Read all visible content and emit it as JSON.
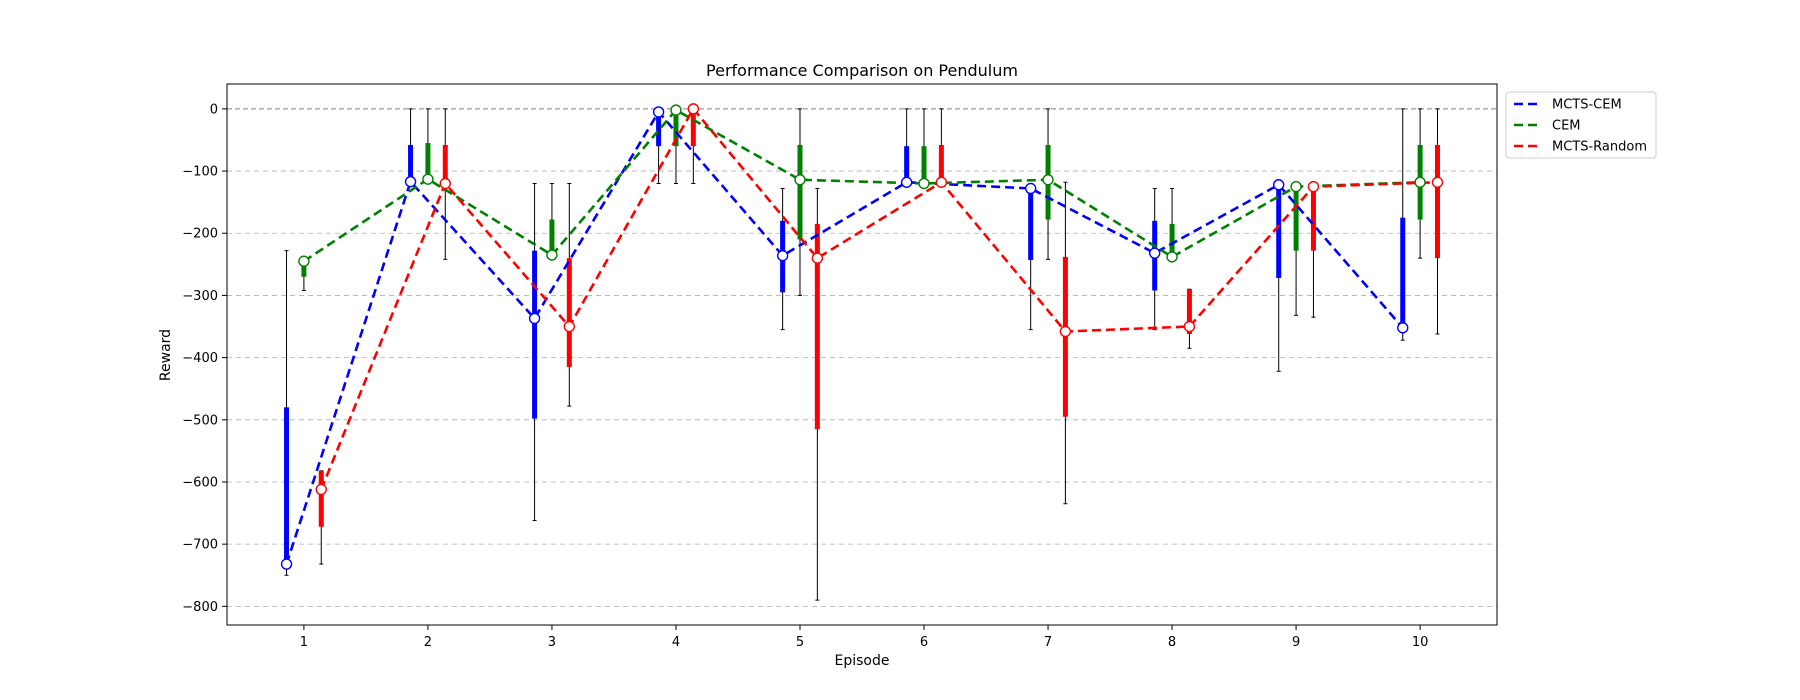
{
  "chart_data": {
    "type": "line",
    "title": "Performance Comparison on Pendulum",
    "xlabel": "Episode",
    "ylabel": "Reward",
    "x": [
      1,
      2,
      3,
      4,
      5,
      6,
      7,
      8,
      9,
      10
    ],
    "xlim": [
      0.38,
      10.62
    ],
    "ylim": [
      -830,
      40
    ],
    "yticks": [
      0,
      -100,
      -200,
      -300,
      -400,
      -500,
      -600,
      -700,
      -800
    ],
    "ytick_labels": [
      "0",
      "−100",
      "−200",
      "−300",
      "−400",
      "−500",
      "−600",
      "−700",
      "−800"
    ],
    "grid": "y-dashed",
    "reference_line": 0,
    "legend_position": "outside-top-right",
    "series": [
      {
        "name": "MCTS-CEM",
        "color": "#0000ff",
        "x_offset": -0.14,
        "values": [
          -732,
          -117,
          -337,
          -5,
          -236,
          -118,
          -128,
          -232,
          -122,
          -352
        ],
        "box_top": [
          -480,
          -58,
          -228,
          0,
          -180,
          -60,
          -135,
          -180,
          -120,
          -175
        ],
        "box_bottom": [
          -735,
          -120,
          -498,
          -60,
          -295,
          -120,
          -243,
          -292,
          -272,
          -355
        ],
        "whisker_top": [
          -228,
          0,
          -120,
          0,
          -128,
          0,
          -122,
          -128,
          -120,
          0
        ],
        "whisker_bottom": [
          -750,
          -120,
          -662,
          -120,
          -355,
          -120,
          -355,
          -355,
          -422,
          -372
        ]
      },
      {
        "name": "CEM",
        "color": "#008000",
        "x_offset": 0.0,
        "values": [
          -245,
          -113,
          -235,
          -2,
          -114,
          -120,
          -114,
          -238,
          -125,
          -118
        ],
        "box_top": [
          -240,
          -55,
          -178,
          0,
          -58,
          -60,
          -58,
          -185,
          -125,
          -58
        ],
        "box_bottom": [
          -270,
          -115,
          -240,
          -60,
          -210,
          -120,
          -178,
          -240,
          -228,
          -178
        ],
        "whisker_top": [
          -240,
          0,
          -120,
          0,
          0,
          0,
          0,
          -128,
          -125,
          0
        ],
        "whisker_bottom": [
          -292,
          -120,
          -240,
          -120,
          -300,
          -120,
          -242,
          -240,
          -332,
          -240
        ]
      },
      {
        "name": "MCTS-Random",
        "color": "#ff0000",
        "x_offset": 0.14,
        "values": [
          -612,
          -120,
          -350,
          0,
          -240,
          -118,
          -358,
          -350,
          -125,
          -118
        ],
        "box_top": [
          -582,
          -58,
          -240,
          0,
          -185,
          -58,
          -238,
          -290,
          -125,
          -58
        ],
        "box_bottom": [
          -672,
          -120,
          -415,
          -60,
          -515,
          -120,
          -495,
          -362,
          -228,
          -240
        ],
        "whisker_top": [
          -582,
          0,
          -120,
          0,
          -128,
          0,
          -118,
          -290,
          -125,
          0
        ],
        "whisker_bottom": [
          -732,
          -242,
          -478,
          -120,
          -790,
          -120,
          -635,
          -385,
          -335,
          -362
        ]
      }
    ]
  }
}
